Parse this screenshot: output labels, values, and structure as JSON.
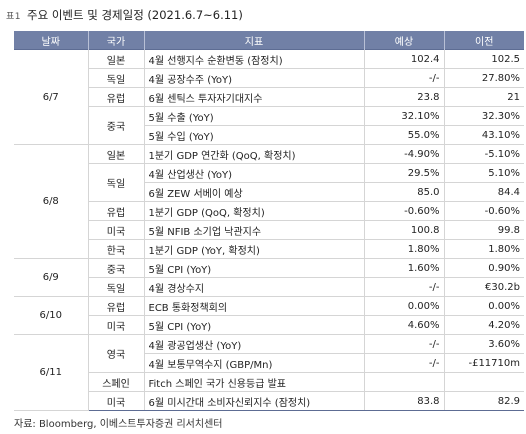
{
  "caption": {
    "tag": "표1",
    "title": "주요 이벤트 및 경제일정 (2021.6.7~6.11)"
  },
  "headers": {
    "date": "날짜",
    "country": "국가",
    "indicator": "지표",
    "forecast": "예상",
    "previous": "이전"
  },
  "groups": [
    {
      "date": "6/7",
      "countries": [
        {
          "country": "일본",
          "rows": [
            {
              "indicator": "4월 선행지수 순환변동 (잠정치)",
              "forecast": "102.4",
              "previous": "102.5"
            }
          ]
        },
        {
          "country": "독일",
          "rows": [
            {
              "indicator": "4월 공장수주 (YoY)",
              "forecast": "-/-",
              "previous": "27.80%"
            }
          ]
        },
        {
          "country": "유럽",
          "rows": [
            {
              "indicator": "6월 센틱스 투자자기대지수",
              "forecast": "23.8",
              "previous": "21"
            }
          ]
        },
        {
          "country": "중국",
          "rows": [
            {
              "indicator": "5월 수출 (YoY)",
              "forecast": "32.10%",
              "previous": "32.30%"
            },
            {
              "indicator": "5월 수입 (YoY)",
              "forecast": "55.0%",
              "previous": "43.10%"
            }
          ]
        }
      ]
    },
    {
      "date": "6/8",
      "countries": [
        {
          "country": "일본",
          "rows": [
            {
              "indicator": "1분기 GDP 연간화 (QoQ, 확정치)",
              "forecast": "-4.90%",
              "previous": "-5.10%"
            }
          ]
        },
        {
          "country": "독일",
          "rows": [
            {
              "indicator": "4월 산업생산 (YoY)",
              "forecast": "29.5%",
              "previous": "5.10%"
            },
            {
              "indicator": "6월 ZEW 서베이 예상",
              "forecast": "85.0",
              "previous": "84.4"
            }
          ]
        },
        {
          "country": "유럽",
          "rows": [
            {
              "indicator": "1분기 GDP (QoQ, 확정치)",
              "forecast": "-0.60%",
              "previous": "-0.60%"
            }
          ]
        },
        {
          "country": "미국",
          "rows": [
            {
              "indicator": "5월 NFIB 소기업 낙관지수",
              "forecast": "100.8",
              "previous": "99.8"
            }
          ]
        },
        {
          "country": "한국",
          "rows": [
            {
              "indicator": "1분기 GDP (YoY, 확정치)",
              "forecast": "1.80%",
              "previous": "1.80%"
            }
          ]
        }
      ]
    },
    {
      "date": "6/9",
      "countries": [
        {
          "country": "중국",
          "rows": [
            {
              "indicator": "5월 CPI (YoY)",
              "forecast": "1.60%",
              "previous": "0.90%"
            }
          ]
        },
        {
          "country": "독일",
          "rows": [
            {
              "indicator": "4월 경상수지",
              "forecast": "-/-",
              "previous": "€30.2b"
            }
          ]
        }
      ]
    },
    {
      "date": "6/10",
      "countries": [
        {
          "country": "유럽",
          "rows": [
            {
              "indicator": "ECB 통화정책회의",
              "forecast": "0.00%",
              "previous": "0.00%"
            }
          ]
        },
        {
          "country": "미국",
          "rows": [
            {
              "indicator": "5월 CPI (YoY)",
              "forecast": "4.60%",
              "previous": "4.20%"
            }
          ]
        }
      ]
    },
    {
      "date": "6/11",
      "countries": [
        {
          "country": "영국",
          "rows": [
            {
              "indicator": "4월 광공업생산 (YoY)",
              "forecast": "-/-",
              "previous": "3.60%"
            },
            {
              "indicator": "4월 보통무역수지 (GBP/Mn)",
              "forecast": "-/-",
              "previous": "-£11710m"
            }
          ]
        },
        {
          "country": "스페인",
          "rows": [
            {
              "indicator": "Fitch 스페인 국가 신용등급 발표",
              "forecast": "",
              "previous": ""
            }
          ]
        },
        {
          "country": "미국",
          "rows": [
            {
              "indicator": "6월 미시간대 소비자신뢰지수 (잠정치)",
              "forecast": "83.8",
              "previous": "82.9"
            }
          ]
        }
      ]
    }
  ],
  "source": "자료: Bloomberg, 이베스트투자증권 리서치센터"
}
